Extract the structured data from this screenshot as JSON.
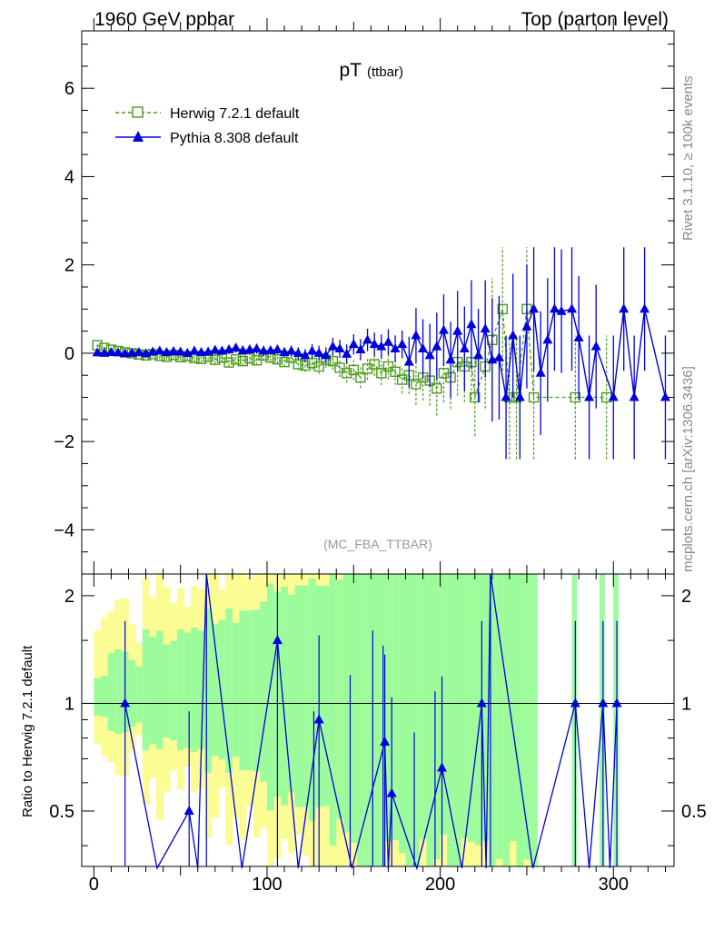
{
  "header": {
    "left": "1960 GeV ppbar",
    "right": "Top (parton level)"
  },
  "side_labels": {
    "rivet": "Rivet 3.1.10, ≥ 100k events",
    "mcplots": "mcplots.cern.ch [arXiv:1306.3436]"
  },
  "main_panel": {
    "title": "pT",
    "title_sub": "(ttbar)",
    "analysis_tag": "(MC_FBA_TTBAR)",
    "yticks": [
      "−4",
      "−2",
      "0",
      "2",
      "4",
      "6"
    ],
    "ylim": [
      -5.0,
      7.3
    ]
  },
  "ratio_panel": {
    "ylabel": "Ratio to Herwig 7.2.1 default",
    "yticks": [
      "0.5",
      "1",
      "2"
    ],
    "ylim": [
      0.35,
      2.3
    ]
  },
  "xaxis": {
    "ticks": [
      "0",
      "100",
      "200",
      "300"
    ],
    "xlim": [
      -7,
      335
    ]
  },
  "colors": {
    "herwig": "#4c9a1a",
    "pythia": "#0000dd",
    "band_green": "#9cfc9c",
    "band_yellow": "#fcfc94"
  },
  "chart_data": {
    "type": "line",
    "title": "pT (ttbar)",
    "xlabel": "",
    "ylabel": "",
    "legend_position": "top-left",
    "series": [
      {
        "name": "Herwig 7.2.1 default",
        "marker": "open-square",
        "linestyle": "dashed",
        "points": [
          [
            2,
            0.18
          ],
          [
            6,
            0.12
          ],
          [
            10,
            0.08
          ],
          [
            14,
            0.05
          ],
          [
            18,
            0.02
          ],
          [
            22,
            0.0
          ],
          [
            26,
            -0.03
          ],
          [
            30,
            -0.05
          ],
          [
            34,
            -0.02
          ],
          [
            38,
            -0.06
          ],
          [
            42,
            -0.08
          ],
          [
            46,
            -0.04
          ],
          [
            50,
            -0.09
          ],
          [
            54,
            -0.07
          ],
          [
            58,
            -0.11
          ],
          [
            62,
            -0.13
          ],
          [
            66,
            -0.08
          ],
          [
            70,
            -0.15
          ],
          [
            74,
            -0.1
          ],
          [
            78,
            -0.21
          ],
          [
            82,
            -0.14
          ],
          [
            86,
            -0.18
          ],
          [
            90,
            -0.12
          ],
          [
            94,
            -0.16
          ],
          [
            98,
            -0.05
          ],
          [
            102,
            -0.1
          ],
          [
            106,
            -0.14
          ],
          [
            110,
            -0.2
          ],
          [
            114,
            -0.1
          ],
          [
            118,
            -0.25
          ],
          [
            122,
            -0.28
          ],
          [
            126,
            -0.22
          ],
          [
            130,
            -0.3
          ],
          [
            134,
            -0.15
          ],
          [
            138,
            -0.18
          ],
          [
            142,
            -0.33
          ],
          [
            146,
            -0.45
          ],
          [
            150,
            -0.38
          ],
          [
            154,
            -0.55
          ],
          [
            158,
            -0.35
          ],
          [
            162,
            -0.25
          ],
          [
            166,
            -0.45
          ],
          [
            170,
            -0.3
          ],
          [
            174,
            -0.42
          ],
          [
            178,
            -0.6
          ],
          [
            182,
            -0.5
          ],
          [
            186,
            -0.7
          ],
          [
            190,
            -0.55
          ],
          [
            194,
            -0.62
          ],
          [
            198,
            -0.8
          ],
          [
            202,
            -0.45
          ],
          [
            206,
            -0.55
          ],
          [
            210,
            -0.2
          ],
          [
            214,
            -0.3
          ],
          [
            218,
            -0.2
          ],
          [
            220,
            -1.0
          ],
          [
            226,
            -0.3
          ],
          [
            230,
            0.3
          ],
          [
            236,
            1.0
          ],
          [
            240,
            -1.0
          ],
          [
            244,
            -1.0
          ],
          [
            250,
            1.0
          ],
          [
            254,
            -1.0
          ],
          [
            278,
            -1.0
          ],
          [
            296,
            -1.0
          ]
        ]
      },
      {
        "name": "Pythia 8.308 default",
        "marker": "filled-triangle",
        "linestyle": "solid",
        "points": [
          [
            2,
            0.01
          ],
          [
            6,
            0.0
          ],
          [
            10,
            0.02
          ],
          [
            14,
            0.01
          ],
          [
            18,
            -0.01
          ],
          [
            22,
            0.0
          ],
          [
            26,
            0.02
          ],
          [
            30,
            -0.01
          ],
          [
            34,
            0.03
          ],
          [
            38,
            0.05
          ],
          [
            42,
            0.02
          ],
          [
            46,
            0.04
          ],
          [
            50,
            0.03
          ],
          [
            54,
            0.0
          ],
          [
            58,
            0.05
          ],
          [
            62,
            0.02
          ],
          [
            66,
            0.03
          ],
          [
            70,
            0.07
          ],
          [
            74,
            0.05
          ],
          [
            78,
            0.08
          ],
          [
            82,
            0.12
          ],
          [
            86,
            0.06
          ],
          [
            90,
            0.08
          ],
          [
            94,
            0.1
          ],
          [
            98,
            0.05
          ],
          [
            102,
            0.06
          ],
          [
            106,
            0.08
          ],
          [
            110,
            0.02
          ],
          [
            114,
            0.05
          ],
          [
            118,
            0.0
          ],
          [
            122,
            -0.05
          ],
          [
            126,
            0.05
          ],
          [
            130,
            0.0
          ],
          [
            134,
            -0.05
          ],
          [
            138,
            0.15
          ],
          [
            142,
            0.1
          ],
          [
            146,
            -0.02
          ],
          [
            150,
            0.2
          ],
          [
            154,
            0.08
          ],
          [
            158,
            0.3
          ],
          [
            162,
            0.2
          ],
          [
            166,
            0.15
          ],
          [
            170,
            0.25
          ],
          [
            174,
            0.1
          ],
          [
            178,
            0.2
          ],
          [
            182,
            -0.2
          ],
          [
            186,
            0.4
          ],
          [
            190,
            0.1
          ],
          [
            194,
            -0.05
          ],
          [
            198,
            0.15
          ],
          [
            202,
            0.52
          ],
          [
            206,
            -0.15
          ],
          [
            210,
            0.5
          ],
          [
            214,
            0.1
          ],
          [
            218,
            0.65
          ],
          [
            222,
            -0.05
          ],
          [
            226,
            0.55
          ],
          [
            230,
            -0.15
          ],
          [
            234,
            -0.1
          ],
          [
            238,
            -1.0
          ],
          [
            242,
            0.4
          ],
          [
            246,
            -1.0
          ],
          [
            250,
            0.6
          ],
          [
            254,
            1.0
          ],
          [
            258,
            -0.45
          ],
          [
            262,
            0.3
          ],
          [
            266,
            1.0
          ],
          [
            270,
            0.95
          ],
          [
            276,
            1.0
          ],
          [
            280,
            0.35
          ],
          [
            286,
            -1.0
          ],
          [
            290,
            0.15
          ],
          [
            300,
            -1.0
          ],
          [
            306,
            1.0
          ],
          [
            312,
            -1.0
          ],
          [
            318,
            1.0
          ],
          [
            330,
            -1.0
          ]
        ]
      }
    ],
    "ratio_series": {
      "name": "Pythia 8.308 default / Herwig 7.2.1 default",
      "points": [
        [
          18,
          1.0
        ],
        [
          55,
          0.5
        ],
        [
          65,
          2.3
        ],
        [
          106,
          1.5
        ],
        [
          130,
          0.9
        ],
        [
          168,
          0.78
        ],
        [
          172,
          0.56
        ],
        [
          201,
          0.66
        ],
        [
          224,
          1.0
        ],
        [
          229,
          2.3
        ],
        [
          278,
          1.0
        ],
        [
          294,
          1.0
        ],
        [
          302,
          1.0
        ]
      ]
    }
  }
}
